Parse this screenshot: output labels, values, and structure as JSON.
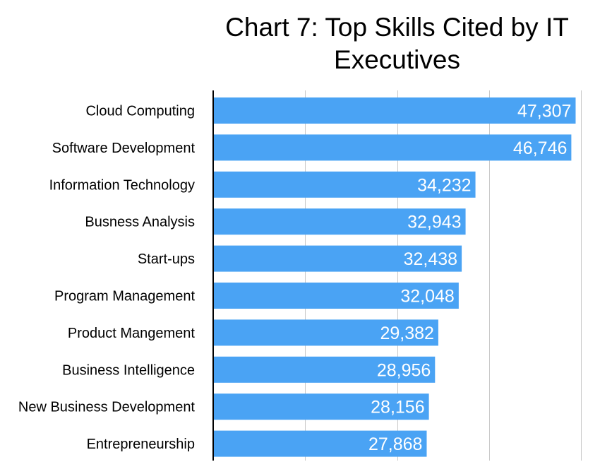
{
  "chart_data": {
    "type": "bar",
    "orientation": "horizontal",
    "title": "Chart 7: Top Skills Cited by IT Executives",
    "categories": [
      "Cloud Computing",
      "Software Development",
      "Information Technology",
      "Busness Analysis",
      "Start-ups",
      "Program Management",
      "Product Mangement",
      "Business Intelligence",
      "New Business Development",
      "Entrepreneurship"
    ],
    "values": [
      47307,
      46746,
      34232,
      32943,
      32438,
      32048,
      29382,
      28956,
      28156,
      27868
    ],
    "value_labels": [
      "47,307",
      "46,746",
      "34,232",
      "32,943",
      "32,438",
      "32,048",
      "29,382",
      "28,956",
      "28,156",
      "27,868"
    ],
    "xlim": [
      0,
      48000
    ],
    "x_grid_step": 12000,
    "grid": true,
    "legend": "none",
    "bar_color": "#4aa3f4",
    "label_color": "#ffffff"
  }
}
